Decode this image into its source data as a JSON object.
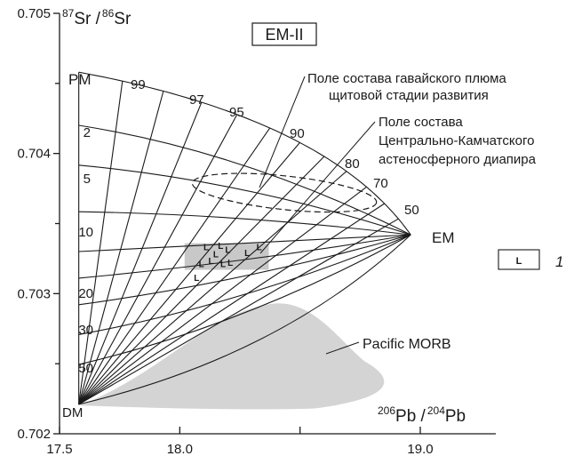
{
  "chart_data": {
    "type": "scatter",
    "title": "EM-II",
    "xlabel": {
      "base1": "",
      "sup1": "206",
      "el1": "Pb /",
      "sup2": "204",
      "el2": "Pb"
    },
    "ylabel": {
      "sup1": "87",
      "el1": "Sr /",
      "sup2": "86",
      "el2": "Sr"
    },
    "xlim": [
      17.5,
      19.0
    ],
    "ylim": [
      0.702,
      0.705
    ],
    "x_ticks": [
      "17.5",
      "18.0",
      "19.0"
    ],
    "y_ticks": [
      "0.702",
      "0.703",
      "0.704",
      "0.705"
    ],
    "end_members": {
      "DM": {
        "label": "DM",
        "x": 17.58,
        "y": 0.70221
      },
      "PM": {
        "label": "PM",
        "x": 17.58,
        "y": 0.70458
      },
      "EM": {
        "label": "EM",
        "x": 18.96,
        "y": 0.70342
      }
    },
    "pm_em_percent_labels": [
      "99",
      "97",
      "95",
      "90",
      "80",
      "70",
      "50"
    ],
    "dm_pm_percent_labels": [
      "2",
      "5",
      "10",
      "20",
      "30",
      "50"
    ],
    "fields": [
      {
        "name": "Поле состава гавайского плюма щитовой стадии развития",
        "line1": "Поле состава гавайского плюма",
        "line2": "щитовой стадии развития",
        "style": "dashed ellipse",
        "x_range": [
          18.05,
          18.82
        ],
        "y_range": [
          0.7036,
          0.70384
        ]
      },
      {
        "name": "Поле состава Центрально-Камчатского астеносферного диапира",
        "line1": "Поле состава",
        "line2": "Центрально-Камчатского",
        "line3": "астеносферного диапира",
        "style": "gray rectangle",
        "x_range": [
          18.02,
          18.37
        ],
        "y_range": [
          0.70317,
          0.70336
        ]
      },
      {
        "name": "Pacific MORB",
        "line1": "Pacific MORB",
        "style": "light gray field",
        "x_range": [
          17.58,
          18.9
        ],
        "y_range": [
          0.70218,
          0.70293
        ]
      }
    ],
    "samples": {
      "legend_label": "1",
      "marker": "L",
      "points": [
        {
          "x": 18.11,
          "y": 0.70331
        },
        {
          "x": 18.17,
          "y": 0.70332
        },
        {
          "x": 18.2,
          "y": 0.70329
        },
        {
          "x": 18.28,
          "y": 0.70327
        },
        {
          "x": 18.33,
          "y": 0.70331
        },
        {
          "x": 18.15,
          "y": 0.70326
        },
        {
          "x": 18.09,
          "y": 0.70319
        },
        {
          "x": 18.13,
          "y": 0.70321
        },
        {
          "x": 18.18,
          "y": 0.70319
        },
        {
          "x": 18.21,
          "y": 0.7032
        },
        {
          "x": 18.07,
          "y": 0.70309
        }
      ]
    },
    "grid": false,
    "legend_position": "right"
  },
  "colors": {
    "ink": "#1a1a1a",
    "kamchatka_field": "#c8c8c8",
    "morb_field": "#d4d4d4"
  }
}
